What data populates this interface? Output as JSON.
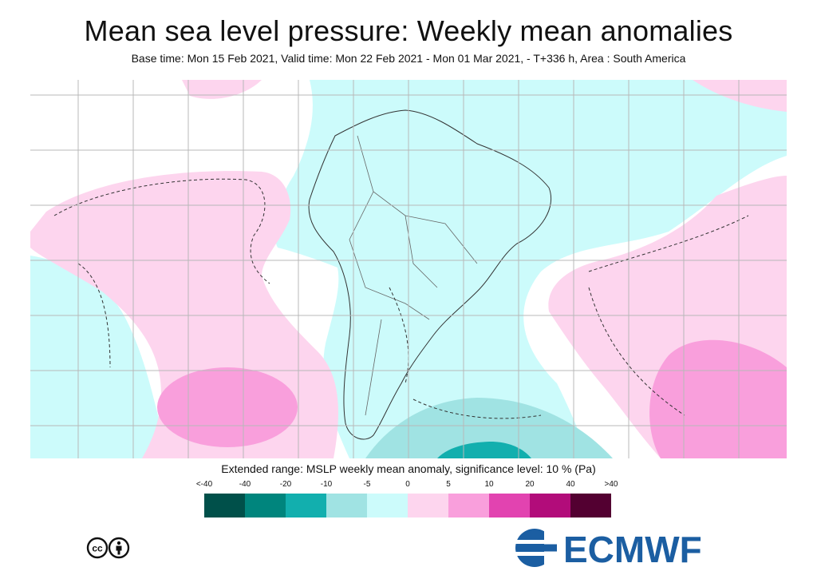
{
  "header": {
    "title": "Mean sea level pressure: Weekly mean anomalies",
    "subtitle": "Base time: Mon 15 Feb 2021, Valid time: Mon 22 Feb 2021 - Mon 01 Mar 2021, - T+336 h, Area : South America"
  },
  "map": {
    "region": "South America",
    "ocean_background_color": "#ffffff",
    "anomaly_regions": [
      {
        "location": "South Pacific west",
        "class": "5",
        "color": "#fdd5ee"
      },
      {
        "location": "South Pacific west core",
        "class": "10",
        "color": "#f99fdc"
      },
      {
        "location": "South Atlantic east",
        "class": "5",
        "color": "#fdd5ee"
      },
      {
        "location": "South Atlantic east core",
        "class": "10",
        "color": "#f99fdc"
      },
      {
        "location": "South America continent and tropics",
        "class": "-5",
        "color": "#ccfbfb"
      },
      {
        "location": "Drake Passage",
        "class": "-10",
        "color": "#a0e3e3"
      },
      {
        "location": "Drake Passage core",
        "class": "-20",
        "color": "#12afae"
      }
    ],
    "significance_contour_style": "dashed"
  },
  "legend": {
    "title": "Extended range: MSLP weekly mean anomaly, significance level: 10 % (Pa)",
    "ticks": [
      "<-40",
      "-40",
      "-20",
      "-10",
      "-5",
      "0",
      "5",
      "10",
      "20",
      "40",
      ">40"
    ],
    "colors": [
      "#00504a",
      "#00857d",
      "#12afae",
      "#a0e3e3",
      "#ccfbfb",
      "#fdd5ee",
      "#f99fdc",
      "#e243b0",
      "#b20c7a",
      "#530031"
    ]
  },
  "logo": {
    "text": "ECMWF",
    "color": "#1b5ea2"
  },
  "license": {
    "symbol": "cc",
    "icon": "cc-by-icon"
  }
}
